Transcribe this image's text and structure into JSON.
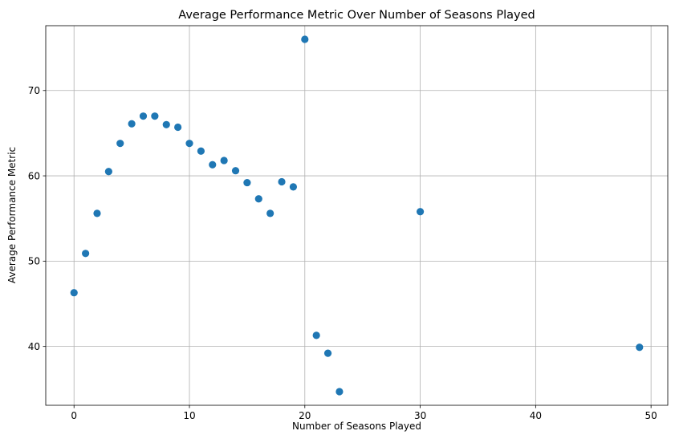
{
  "chart_data": {
    "type": "scatter",
    "title": "Average Performance Metric Over Number of Seasons Played",
    "xlabel": "Number of Seasons Played",
    "ylabel": "Average Performance Metric",
    "xlim": [
      -2.45,
      51.45
    ],
    "ylim": [
      33.1,
      77.6
    ],
    "xticks": [
      0,
      10,
      20,
      30,
      40,
      50
    ],
    "yticks": [
      40,
      50,
      60,
      70
    ],
    "grid": true,
    "marker_color": "#1f77b4",
    "points": [
      {
        "x": 0,
        "y": 46.3
      },
      {
        "x": 1,
        "y": 50.9
      },
      {
        "x": 2,
        "y": 55.6
      },
      {
        "x": 3,
        "y": 60.5
      },
      {
        "x": 4,
        "y": 63.8
      },
      {
        "x": 5,
        "y": 66.1
      },
      {
        "x": 6,
        "y": 67.0
      },
      {
        "x": 7,
        "y": 67.0
      },
      {
        "x": 8,
        "y": 66.0
      },
      {
        "x": 9,
        "y": 65.7
      },
      {
        "x": 10,
        "y": 63.8
      },
      {
        "x": 11,
        "y": 62.9
      },
      {
        "x": 12,
        "y": 61.3
      },
      {
        "x": 13,
        "y": 61.8
      },
      {
        "x": 14,
        "y": 60.6
      },
      {
        "x": 15,
        "y": 59.2
      },
      {
        "x": 16,
        "y": 57.3
      },
      {
        "x": 17,
        "y": 55.6
      },
      {
        "x": 18,
        "y": 59.3
      },
      {
        "x": 19,
        "y": 58.7
      },
      {
        "x": 20,
        "y": 76.0
      },
      {
        "x": 21,
        "y": 41.3
      },
      {
        "x": 22,
        "y": 39.2
      },
      {
        "x": 23,
        "y": 34.7
      },
      {
        "x": 30,
        "y": 55.8
      },
      {
        "x": 49,
        "y": 39.9
      }
    ]
  }
}
